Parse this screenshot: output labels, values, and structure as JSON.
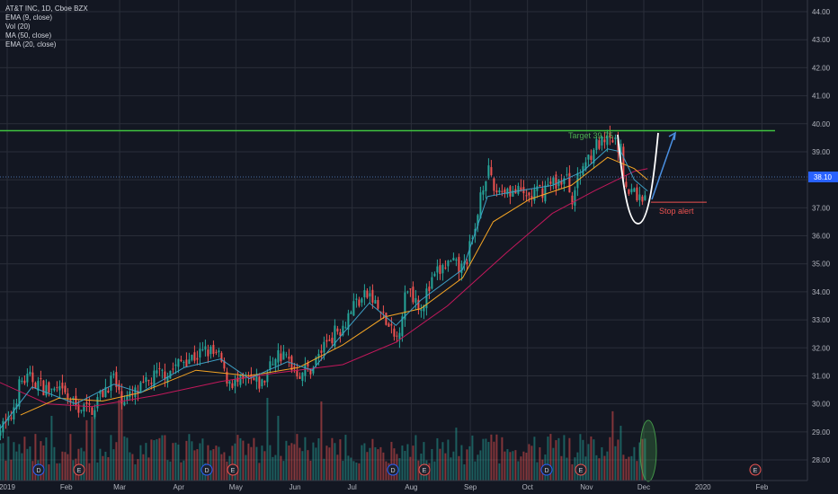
{
  "legend": {
    "symbol": "AT&T INC, 1D, Cboe BZX",
    "ema9": "EMA (9, close)",
    "vol": "Vol (20)",
    "ma50": "MA (50, close)",
    "ema20": "EMA (20, close)"
  },
  "annotations": {
    "target": "Target 39.75",
    "stop": "Stop alert"
  },
  "price_tag": "38.10",
  "colors": {
    "background": "#131722",
    "grid": "#2a2e39",
    "up": "#26a69a",
    "down": "#ef5350",
    "ema9": "#3d9fc4",
    "ema20": "#f5a524",
    "ma50": "#c2185b",
    "target_line": "#3fc43f",
    "price_line": "#4a6fa5",
    "arrow": "#4a90e2"
  },
  "events": [
    "D",
    "E",
    "D",
    "E",
    "D",
    "E",
    "D",
    "E",
    "E"
  ],
  "chart_data": {
    "type": "candlestick",
    "title": "AT&T INC, 1D, Cboe BZX",
    "x_ticks": [
      "2019",
      "Feb",
      "Mar",
      "Apr",
      "May",
      "Jun",
      "Jul",
      "Aug",
      "Sep",
      "Oct",
      "Nov",
      "Dec",
      "2020",
      "Feb"
    ],
    "y_ticks": [
      "28.00",
      "29.00",
      "30.00",
      "31.00",
      "32.00",
      "33.00",
      "34.00",
      "35.00",
      "36.00",
      "37.00",
      "38.00",
      "39.00",
      "40.00",
      "41.00",
      "42.00",
      "43.00",
      "44.00"
    ],
    "ylim": [
      27.5,
      44.3
    ],
    "close_path": [
      [
        "2018-12-27",
        29.1
      ],
      [
        "2019-01-02",
        29.3
      ],
      [
        "2019-01-08",
        30.8
      ],
      [
        "2019-01-14",
        30.9
      ],
      [
        "2019-01-22",
        30.5
      ],
      [
        "2019-01-28",
        30.4
      ],
      [
        "2019-01-31",
        30.3
      ],
      [
        "2019-02-06",
        29.9
      ],
      [
        "2019-02-14",
        29.8
      ],
      [
        "2019-02-20",
        30.4
      ],
      [
        "2019-02-26",
        31.0
      ],
      [
        "2019-02-28",
        30.3
      ],
      [
        "2019-03-06",
        30.2
      ],
      [
        "2019-03-12",
        30.5
      ],
      [
        "2019-03-20",
        31.0
      ],
      [
        "2019-03-28",
        31.2
      ],
      [
        "2019-04-04",
        31.6
      ],
      [
        "2019-04-10",
        31.7
      ],
      [
        "2019-04-16",
        31.9
      ],
      [
        "2019-04-23",
        31.6
      ],
      [
        "2019-04-25",
        31.0
      ],
      [
        "2019-05-01",
        30.7
      ],
      [
        "2019-05-08",
        30.8
      ],
      [
        "2019-05-15",
        30.7
      ],
      [
        "2019-05-22",
        31.8
      ],
      [
        "2019-05-28",
        31.6
      ],
      [
        "2019-06-03",
        31.1
      ],
      [
        "2019-06-10",
        31.3
      ],
      [
        "2019-06-18",
        32.3
      ],
      [
        "2019-06-26",
        32.8
      ],
      [
        "2019-07-02",
        33.6
      ],
      [
        "2019-07-10",
        33.9
      ],
      [
        "2019-07-18",
        33.0
      ],
      [
        "2019-07-24",
        32.2
      ],
      [
        "2019-07-30",
        34.2
      ],
      [
        "2019-08-06",
        33.5
      ],
      [
        "2019-08-14",
        34.6
      ],
      [
        "2019-08-20",
        35.0
      ],
      [
        "2019-08-28",
        34.8
      ],
      [
        "2019-08-30",
        35.2
      ],
      [
        "2019-09-04",
        36.2
      ],
      [
        "2019-09-06",
        37.5
      ],
      [
        "2019-09-10",
        38.4
      ],
      [
        "2019-09-13",
        37.6
      ],
      [
        "2019-09-20",
        37.7
      ],
      [
        "2019-09-26",
        37.5
      ],
      [
        "2019-10-02",
        37.4
      ],
      [
        "2019-10-08",
        37.6
      ],
      [
        "2019-10-14",
        37.9
      ],
      [
        "2019-10-22",
        38.0
      ],
      [
        "2019-10-24",
        37.3
      ],
      [
        "2019-10-30",
        38.5
      ],
      [
        "2019-11-05",
        39.2
      ],
      [
        "2019-11-12",
        39.3
      ],
      [
        "2019-11-15",
        39.4
      ],
      [
        "2019-11-19",
        39.0
      ],
      [
        "2019-11-22",
        37.5
      ],
      [
        "2019-11-26",
        37.6
      ],
      [
        "2019-11-29",
        37.3
      ],
      [
        "2019-12-03",
        37.6
      ]
    ],
    "ema9_path": [
      [
        "2018-12-27",
        29.0
      ],
      [
        "2019-01-14",
        30.6
      ],
      [
        "2019-02-06",
        30.0
      ],
      [
        "2019-02-26",
        30.7
      ],
      [
        "2019-03-12",
        30.4
      ],
      [
        "2019-04-04",
        31.3
      ],
      [
        "2019-04-23",
        31.6
      ],
      [
        "2019-05-08",
        30.9
      ],
      [
        "2019-05-28",
        31.5
      ],
      [
        "2019-06-10",
        31.2
      ],
      [
        "2019-06-26",
        32.5
      ],
      [
        "2019-07-10",
        33.6
      ],
      [
        "2019-07-24",
        32.8
      ],
      [
        "2019-08-06",
        33.7
      ],
      [
        "2019-08-28",
        34.8
      ],
      [
        "2019-09-10",
        37.4
      ],
      [
        "2019-09-26",
        37.6
      ],
      [
        "2019-10-14",
        37.8
      ],
      [
        "2019-10-30",
        38.3
      ],
      [
        "2019-11-12",
        39.1
      ],
      [
        "2019-11-19",
        39.0
      ],
      [
        "2019-11-26",
        38.0
      ],
      [
        "2019-12-03",
        37.6
      ]
    ],
    "ema20_path": [
      [
        "2019-01-08",
        29.6
      ],
      [
        "2019-01-28",
        30.2
      ],
      [
        "2019-02-20",
        30.1
      ],
      [
        "2019-03-12",
        30.4
      ],
      [
        "2019-04-10",
        31.2
      ],
      [
        "2019-05-08",
        31.0
      ],
      [
        "2019-06-03",
        31.3
      ],
      [
        "2019-06-26",
        32.1
      ],
      [
        "2019-07-18",
        33.1
      ],
      [
        "2019-08-06",
        33.4
      ],
      [
        "2019-08-28",
        34.5
      ],
      [
        "2019-09-13",
        36.5
      ],
      [
        "2019-10-02",
        37.3
      ],
      [
        "2019-10-24",
        37.8
      ],
      [
        "2019-11-12",
        38.8
      ],
      [
        "2019-11-26",
        38.4
      ],
      [
        "2019-12-03",
        38.0
      ]
    ],
    "ma50_path": [
      [
        "2018-12-27",
        30.8
      ],
      [
        "2019-01-22",
        30.0
      ],
      [
        "2019-02-14",
        29.9
      ],
      [
        "2019-03-20",
        30.3
      ],
      [
        "2019-04-23",
        30.8
      ],
      [
        "2019-05-22",
        31.1
      ],
      [
        "2019-06-26",
        31.4
      ],
      [
        "2019-07-24",
        32.2
      ],
      [
        "2019-08-20",
        33.5
      ],
      [
        "2019-09-20",
        35.4
      ],
      [
        "2019-10-14",
        36.8
      ],
      [
        "2019-11-05",
        37.6
      ],
      [
        "2019-11-26",
        38.3
      ],
      [
        "2019-12-03",
        38.4
      ]
    ],
    "target_level": 39.75,
    "current_price": 38.1,
    "stop_level": 37.2
  }
}
